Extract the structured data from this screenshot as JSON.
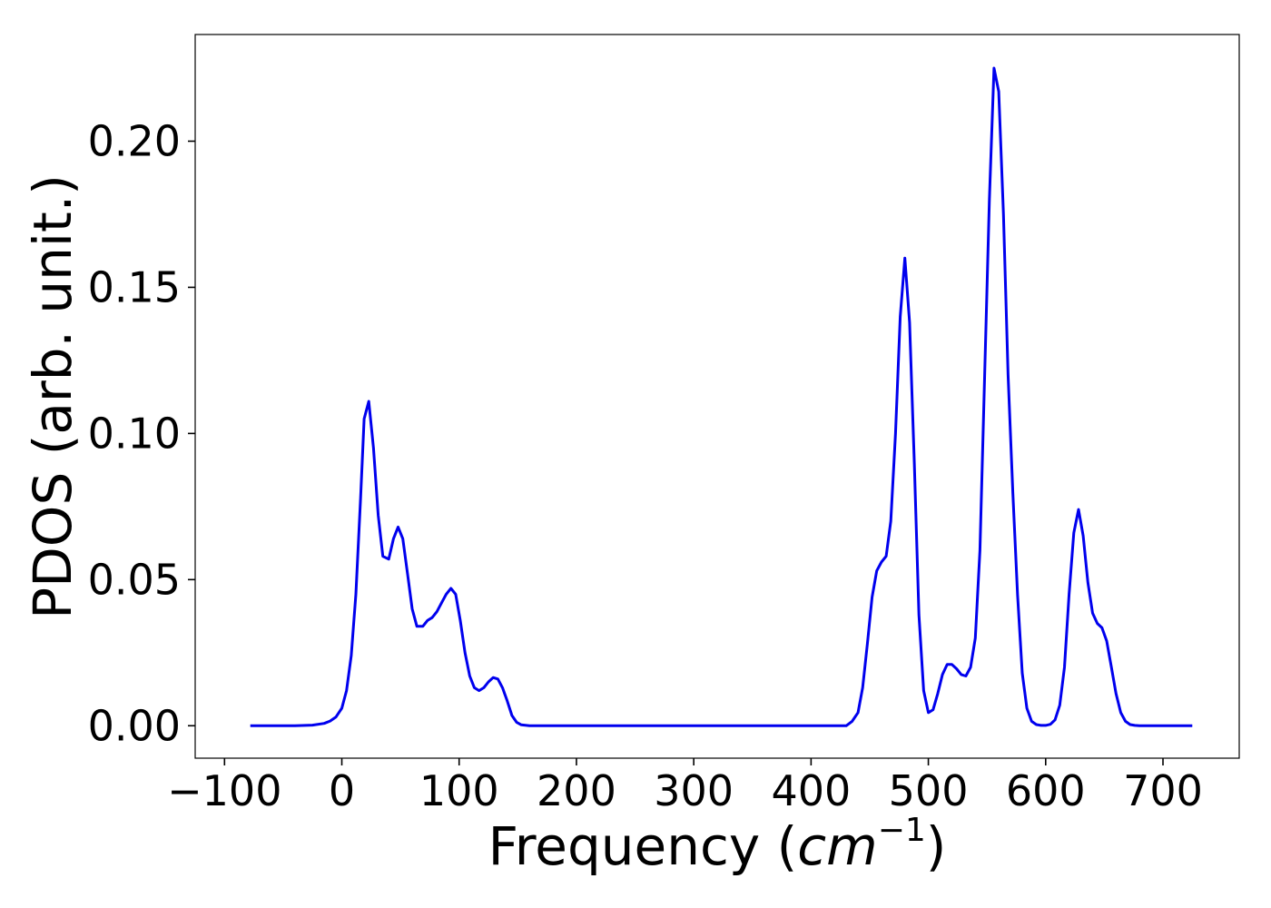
{
  "chart_data": {
    "type": "line",
    "title": "",
    "xlabel": "Frequency",
    "xlabel_unit_base": "cm",
    "xlabel_unit_exp": "−1",
    "ylabel": "PDOS (arb. unit.)",
    "xlim": [
      -125,
      765
    ],
    "ylim": [
      -0.0111,
      0.2365
    ],
    "xticks": [
      -100,
      0,
      100,
      200,
      300,
      400,
      500,
      600,
      700
    ],
    "xtick_labels": [
      "−100",
      "0",
      "100",
      "200",
      "300",
      "400",
      "500",
      "600",
      "700"
    ],
    "yticks": [
      0.0,
      0.05,
      0.1,
      0.15,
      0.2
    ],
    "ytick_labels": [
      "0.00",
      "0.05",
      "0.10",
      "0.15",
      "0.20"
    ],
    "grid": false,
    "line_color": "#0000ee",
    "series": [
      {
        "x": [
          -78,
          -40,
          -25,
          -15,
          -10,
          -5,
          0,
          4,
          8,
          12,
          16,
          19,
          23,
          27,
          31,
          35,
          40,
          44,
          48,
          52,
          56,
          60,
          64,
          69,
          73,
          77,
          81,
          85,
          89,
          93,
          97,
          101,
          105,
          109,
          113,
          117,
          121,
          125,
          129,
          133,
          137,
          141,
          145,
          149,
          153,
          160,
          200,
          300,
          400,
          430,
          435,
          440,
          444,
          448,
          452,
          456,
          460,
          464,
          468,
          472,
          476,
          480,
          484,
          488,
          492,
          496,
          500,
          504,
          508,
          512,
          516,
          520,
          524,
          528,
          532,
          536,
          540,
          544,
          548,
          552,
          556,
          560,
          564,
          568,
          572,
          576,
          580,
          584,
          588,
          592,
          596,
          600,
          604,
          608,
          612,
          616,
          620,
          624,
          628,
          632,
          636,
          640,
          644,
          648,
          652,
          656,
          660,
          664,
          668,
          672,
          676,
          680,
          700,
          725
        ],
        "y": [
          0.0,
          0.0,
          0.0002,
          0.0008,
          0.0016,
          0.003,
          0.006,
          0.012,
          0.024,
          0.045,
          0.078,
          0.105,
          0.111,
          0.095,
          0.072,
          0.058,
          0.057,
          0.064,
          0.068,
          0.064,
          0.052,
          0.04,
          0.034,
          0.034,
          0.036,
          0.037,
          0.039,
          0.042,
          0.045,
          0.047,
          0.045,
          0.036,
          0.025,
          0.017,
          0.013,
          0.012,
          0.013,
          0.015,
          0.0165,
          0.016,
          0.013,
          0.0085,
          0.0035,
          0.0012,
          0.0003,
          0.0,
          0.0,
          0.0,
          0.0,
          0.0,
          0.0015,
          0.0045,
          0.013,
          0.028,
          0.044,
          0.053,
          0.056,
          0.058,
          0.07,
          0.1,
          0.14,
          0.16,
          0.138,
          0.09,
          0.038,
          0.012,
          0.0045,
          0.0055,
          0.011,
          0.0175,
          0.021,
          0.021,
          0.0195,
          0.0175,
          0.017,
          0.02,
          0.03,
          0.06,
          0.12,
          0.18,
          0.225,
          0.217,
          0.175,
          0.12,
          0.08,
          0.045,
          0.018,
          0.006,
          0.0015,
          0.0004,
          0.0001,
          0.0001,
          0.0005,
          0.002,
          0.007,
          0.02,
          0.045,
          0.066,
          0.074,
          0.065,
          0.049,
          0.0385,
          0.035,
          0.0335,
          0.029,
          0.02,
          0.011,
          0.0045,
          0.0015,
          0.0004,
          0.0001,
          0.0,
          0.0,
          0.0
        ]
      }
    ]
  }
}
